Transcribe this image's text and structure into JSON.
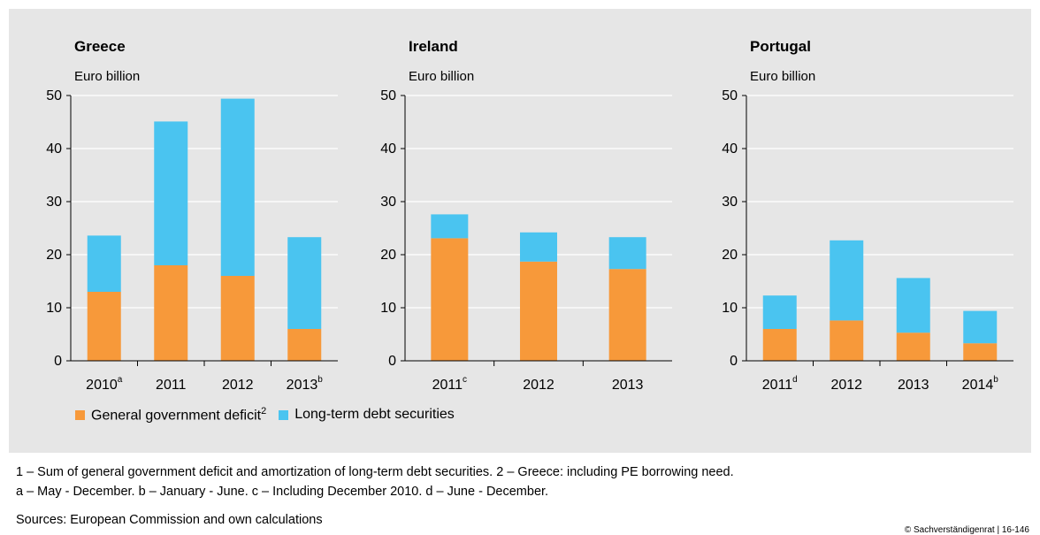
{
  "colors": {
    "deficit": "#f7993a",
    "debt": "#4ac4f0",
    "panel": "#e6e6e6",
    "grid": "#ffffff"
  },
  "chart_data": [
    {
      "type": "bar",
      "stacked": true,
      "title": "Greece",
      "ylabel": "Euro billion",
      "ylim": [
        0,
        50
      ],
      "yticks": [
        0,
        10,
        20,
        30,
        40,
        50
      ],
      "grid": true,
      "categories": [
        {
          "label": "2010",
          "sup": "a"
        },
        {
          "label": "2011",
          "sup": ""
        },
        {
          "label": "2012",
          "sup": ""
        },
        {
          "label": "2013",
          "sup": "b"
        }
      ],
      "series": [
        {
          "name": "General government deficit",
          "values": [
            13.0,
            18.0,
            16.0,
            6.0
          ]
        },
        {
          "name": "Long-term debt securities",
          "values": [
            10.6,
            27.1,
            33.4,
            17.3
          ]
        }
      ]
    },
    {
      "type": "bar",
      "stacked": true,
      "title": "Ireland",
      "ylabel": "Euro billion",
      "ylim": [
        0,
        50
      ],
      "yticks": [
        0,
        10,
        20,
        30,
        40,
        50
      ],
      "grid": true,
      "categories": [
        {
          "label": "2011",
          "sup": "c"
        },
        {
          "label": "2012",
          "sup": ""
        },
        {
          "label": "2013",
          "sup": ""
        }
      ],
      "series": [
        {
          "name": "General government deficit",
          "values": [
            23.1,
            18.7,
            17.3
          ]
        },
        {
          "name": "Long-term debt securities",
          "values": [
            4.5,
            5.5,
            6.0
          ]
        }
      ]
    },
    {
      "type": "bar",
      "stacked": true,
      "title": "Portugal",
      "ylabel": "Euro billion",
      "ylim": [
        0,
        50
      ],
      "yticks": [
        0,
        10,
        20,
        30,
        40,
        50
      ],
      "grid": true,
      "categories": [
        {
          "label": "2011",
          "sup": "d"
        },
        {
          "label": "2012",
          "sup": ""
        },
        {
          "label": "2013",
          "sup": ""
        },
        {
          "label": "2014",
          "sup": "b"
        }
      ],
      "series": [
        {
          "name": "General government deficit",
          "values": [
            6.0,
            7.6,
            5.3,
            3.3
          ]
        },
        {
          "name": "Long-term debt securities",
          "values": [
            6.3,
            15.1,
            10.3,
            6.1
          ]
        }
      ]
    }
  ],
  "legend": {
    "deficit_label": "General government deficit",
    "deficit_sup": "2",
    "debt_label": "Long-term debt securities"
  },
  "footnotes": {
    "line1": "1 – Sum of general government deficit and amortization of long-term debt securities.  2 – Greece: including PE borrowing need.",
    "line2": "a – May - December.  b – January - June.  c – Including December 2010.  d – June - December.",
    "sources": "Sources: European Commission and own calculations",
    "copyright": "© Sachverständigenrat | 16-146"
  }
}
